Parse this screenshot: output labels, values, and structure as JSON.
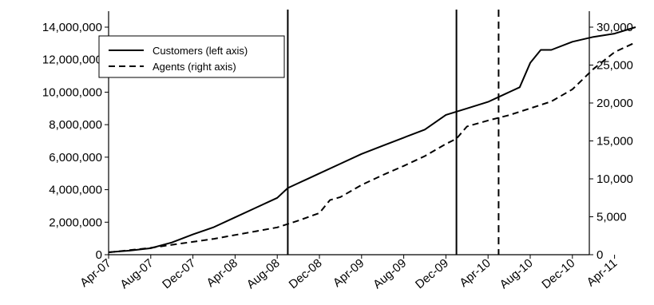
{
  "chart_data": {
    "type": "line",
    "title": "",
    "x_tick_labels": [
      "Apr-07",
      "Aug-07",
      "Dec-07",
      "Apr-08",
      "Aug-08",
      "Dec-08",
      "Apr-09",
      "Aug-09",
      "Dec-09",
      "Apr-10",
      "Aug-10",
      "Dec-10",
      "Apr-11"
    ],
    "x_start": "Apr-07",
    "left_axis": {
      "ylim": [
        0,
        14000000
      ],
      "tick_values": [
        0,
        2000000,
        4000000,
        6000000,
        8000000,
        10000000,
        12000000,
        14000000
      ],
      "tick_labels": [
        "0",
        "2,000,000",
        "4,000,000",
        "6,000,000",
        "8,000,000",
        "10,000,000",
        "12,000,000",
        "14,000,000"
      ]
    },
    "right_axis": {
      "ylim": [
        0,
        30000
      ],
      "tick_values": [
        0,
        5000,
        10000,
        15000,
        20000,
        25000,
        30000
      ],
      "tick_labels": [
        "0",
        "5,000",
        "10,000",
        "15,000",
        "20,000",
        "25,000",
        "30,000"
      ]
    },
    "legend": {
      "position": "top-left"
    },
    "series": [
      {
        "name": "Customers (left axis)",
        "axis": "left",
        "style": "solid",
        "points": [
          [
            "Apr-07",
            150000
          ],
          [
            "Jun-07",
            250000
          ],
          [
            "Aug-07",
            400000
          ],
          [
            "Oct-07",
            750000
          ],
          [
            "Dec-07",
            1250000
          ],
          [
            "Feb-08",
            1700000
          ],
          [
            "Apr-08",
            2300000
          ],
          [
            "Jun-08",
            2900000
          ],
          [
            "Aug-08",
            3500000
          ],
          [
            "Sep-08",
            4100000
          ],
          [
            "Oct-08",
            4400000
          ],
          [
            "Dec-08",
            5000000
          ],
          [
            "Feb-09",
            5600000
          ],
          [
            "Apr-09",
            6200000
          ],
          [
            "Jun-09",
            6700000
          ],
          [
            "Aug-09",
            7200000
          ],
          [
            "Oct-09",
            7700000
          ],
          [
            "Dec-09",
            8600000
          ],
          [
            "Feb-10",
            9000000
          ],
          [
            "Apr-10",
            9400000
          ],
          [
            "Jun-10",
            10000000
          ],
          [
            "Jul-10",
            10300000
          ],
          [
            "Aug-10",
            11800000
          ],
          [
            "Sep-10",
            12600000
          ],
          [
            "Oct-10",
            12600000
          ],
          [
            "Dec-10",
            13100000
          ],
          [
            "Feb-11",
            13400000
          ],
          [
            "Apr-11",
            13600000
          ],
          [
            "Jun-11",
            14000000
          ]
        ]
      },
      {
        "name": "Agents (right axis)",
        "axis": "right",
        "style": "dashed",
        "points": [
          [
            "Apr-07",
            300
          ],
          [
            "Jun-07",
            600
          ],
          [
            "Aug-07",
            900
          ],
          [
            "Oct-07",
            1300
          ],
          [
            "Dec-07",
            1700
          ],
          [
            "Feb-08",
            2100
          ],
          [
            "Apr-08",
            2600
          ],
          [
            "Jun-08",
            3100
          ],
          [
            "Aug-08",
            3600
          ],
          [
            "Oct-08",
            4500
          ],
          [
            "Dec-08",
            5500
          ],
          [
            "Jan-09",
            7200
          ],
          [
            "Feb-09",
            7600
          ],
          [
            "Apr-09",
            9200
          ],
          [
            "Jun-09",
            10500
          ],
          [
            "Aug-09",
            11700
          ],
          [
            "Oct-09",
            13000
          ],
          [
            "Dec-09",
            14600
          ],
          [
            "Jan-10",
            15300
          ],
          [
            "Feb-10",
            16900
          ],
          [
            "Apr-10",
            17700
          ],
          [
            "Jun-10",
            18400
          ],
          [
            "Aug-10",
            19300
          ],
          [
            "Oct-10",
            20200
          ],
          [
            "Dec-10",
            21800
          ],
          [
            "Feb-11",
            24500
          ],
          [
            "Apr-11",
            26700
          ],
          [
            "Jun-11",
            28000
          ]
        ]
      }
    ],
    "vertical_markers": [
      {
        "x": "Sep-08",
        "style": "solid"
      },
      {
        "x": "Jan-10",
        "style": "solid"
      },
      {
        "x": "May-10",
        "style": "dashed"
      }
    ],
    "grid": false
  }
}
